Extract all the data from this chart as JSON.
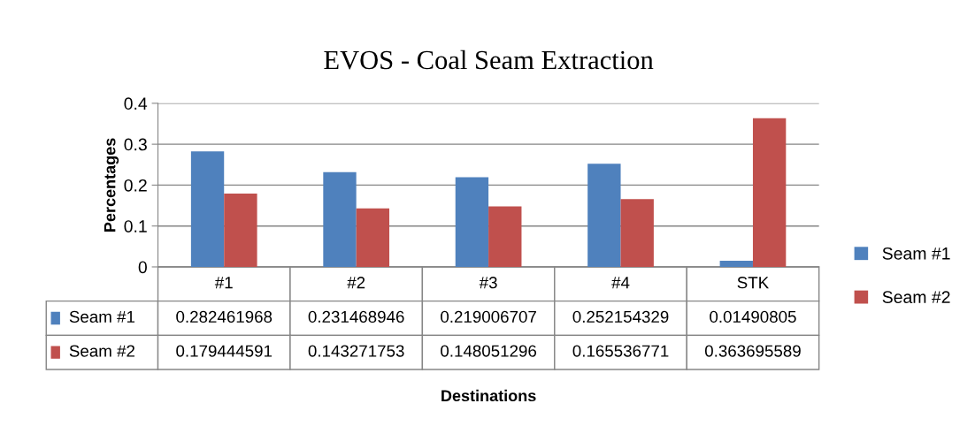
{
  "chart_data": {
    "type": "bar",
    "title": "EVOS - Coal Seam Extraction",
    "annotations": [
      "Destinations"
    ],
    "ylabel": "Percentages",
    "categories": [
      "#1",
      "#2",
      "#3",
      "#4",
      "STK"
    ],
    "series": [
      {
        "name": "Seam #1",
        "color": "#4f81bd",
        "values": [
          0.282461968,
          0.231468946,
          0.219006707,
          0.252154329,
          0.01490805
        ]
      },
      {
        "name": "Seam #2",
        "color": "#c0504d",
        "values": [
          0.179444591,
          0.143271753,
          0.148051296,
          0.165536771,
          0.363695589
        ]
      }
    ],
    "ylim": [
      0,
      0.4
    ],
    "yticks": [
      0,
      0.1,
      0.2,
      0.3,
      0.4
    ],
    "grid": "y",
    "legend": "right",
    "data_labels": true
  }
}
